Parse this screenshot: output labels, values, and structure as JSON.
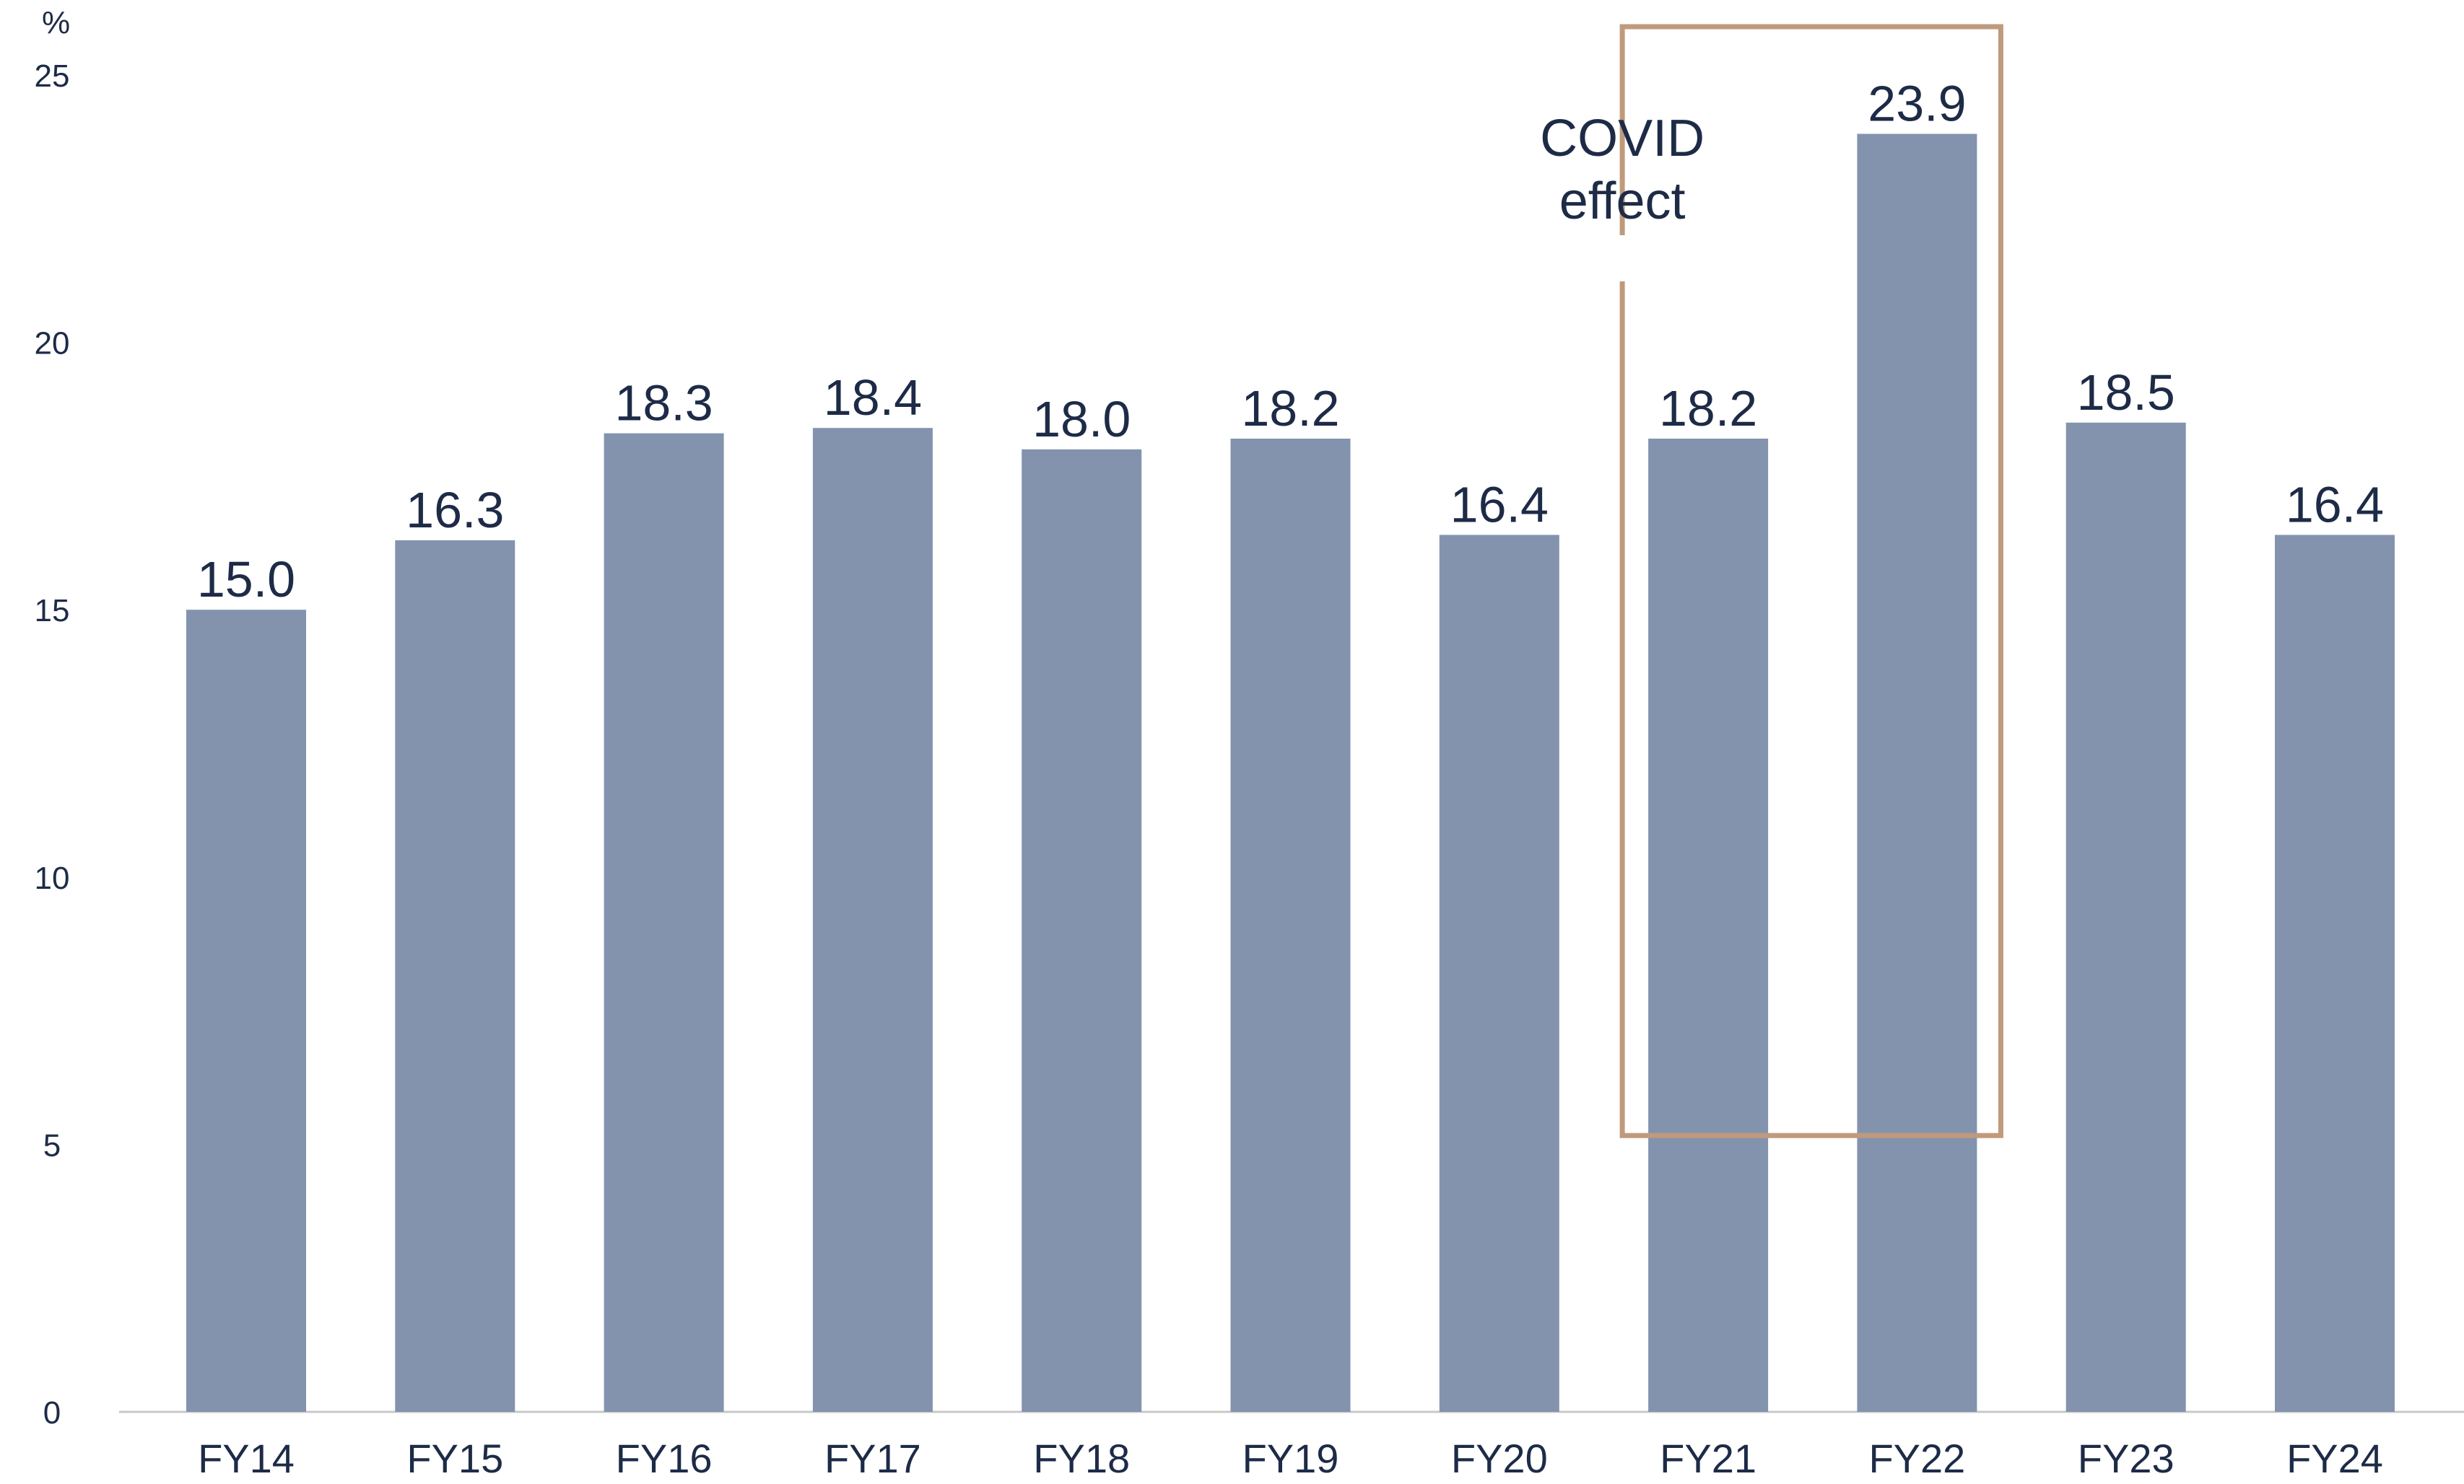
{
  "chart_data": {
    "type": "bar",
    "unit_label": "%",
    "categories": [
      "FY14",
      "FY15",
      "FY16",
      "FY17",
      "FY18",
      "FY19",
      "FY20",
      "FY21",
      "FY22",
      "FY23",
      "FY24"
    ],
    "values": [
      15.0,
      16.3,
      18.3,
      18.4,
      18.0,
      18.2,
      16.4,
      18.2,
      23.9,
      18.5,
      16.4
    ],
    "value_labels": [
      "15.0",
      "16.3",
      "18.3",
      "18.4",
      "18.0",
      "18.2",
      "16.4",
      "18.2",
      "23.9",
      "18.5",
      "16.4"
    ],
    "y_ticks": [
      "0",
      "5",
      "10",
      "15",
      "20",
      "25"
    ],
    "ylim": [
      0,
      25
    ],
    "grid": false,
    "bar_color": "#8393ae",
    "annotation": {
      "lines": [
        "COVID",
        "effect"
      ],
      "categories": [
        "FY21",
        "FY22"
      ],
      "color": "#c09a7c"
    }
  }
}
